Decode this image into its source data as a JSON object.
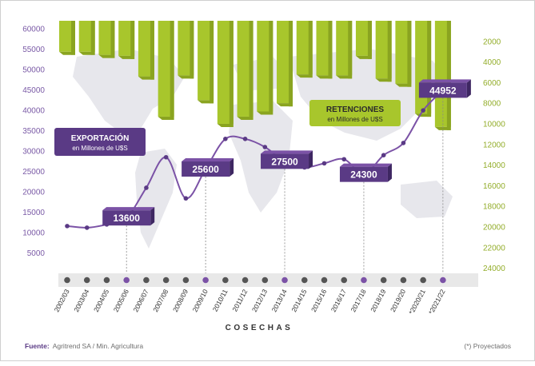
{
  "chart_data": {
    "type": "bar+line",
    "xlabel": "COSECHAS",
    "categories": [
      "2002/03",
      "2003/04",
      "2004/05",
      "2005/06",
      "2006/07",
      "2007/08",
      "2008/09",
      "2009/10",
      "2010/11",
      "2011/12",
      "2012/13",
      "2013/14",
      "2014/15",
      "2015/16",
      "2016/17",
      "2017/18",
      "2018/19",
      "2019/20",
      "*2020/21",
      "*2021/22"
    ],
    "series": [
      {
        "name": "EXPORTACIÓN",
        "unit": "en Millones de U$S",
        "axis": "left",
        "type": "line",
        "color": "#7b52a6",
        "values": [
          11600,
          11200,
          12000,
          13600,
          21000,
          28500,
          18400,
          25600,
          33000,
          33000,
          31000,
          27500,
          26000,
          27000,
          28000,
          24300,
          29000,
          32000,
          40000,
          44952
        ]
      },
      {
        "name": "RETENCIONES",
        "unit": "en Millones de U$S",
        "axis": "right",
        "type": "bar",
        "color": "#a8c62c",
        "values": [
          3000,
          3000,
          3300,
          3400,
          5400,
          9300,
          5300,
          7700,
          10000,
          9300,
          8800,
          8000,
          5200,
          5300,
          5300,
          3400,
          5600,
          6100,
          9000,
          10300
        ]
      }
    ],
    "highlighted_labels": [
      {
        "category": "2005/06",
        "value": "13600"
      },
      {
        "category": "2009/10",
        "value": "25600"
      },
      {
        "category": "2013/14",
        "value": "27500"
      },
      {
        "category": "2017/18",
        "value": "24300"
      },
      {
        "category": "*2021/22",
        "value": "44952"
      }
    ],
    "highlighted_categories": [
      "2005/06",
      "2009/10",
      "2013/14",
      "2017/18",
      "*2021/22"
    ],
    "y_left": {
      "ticks": [
        5000,
        10000,
        15000,
        20000,
        25000,
        30000,
        35000,
        40000,
        45000,
        50000,
        55000,
        60000
      ],
      "range": [
        0,
        62000
      ]
    },
    "y_right": {
      "ticks": [
        2000,
        4000,
        6000,
        8000,
        10000,
        12000,
        14000,
        16000,
        18000,
        20000,
        22000,
        24000
      ],
      "range": [
        0,
        24500
      ],
      "inverted": true
    },
    "colors": {
      "purple": "#5a3a85",
      "purple_light": "#7b52a6",
      "green": "#a8c62c",
      "green_dark": "#8aa420",
      "axis_text_left": "#7a5aa6",
      "axis_text_right": "#93ad2a",
      "map": "#e6e6ea",
      "band": "#e8e8e8",
      "dot": "#555555"
    }
  },
  "legend_export": {
    "title": "EXPORTACIÓN",
    "subtitle": "en Millones de U$S"
  },
  "legend_ret": {
    "title": "RETENCIONES",
    "subtitle": "en Millones de U$S"
  },
  "footer": {
    "source_label": "Fuente:",
    "source_text": "Agritrend SA / Min. Agricultura",
    "note": "(*) Proyectados"
  }
}
